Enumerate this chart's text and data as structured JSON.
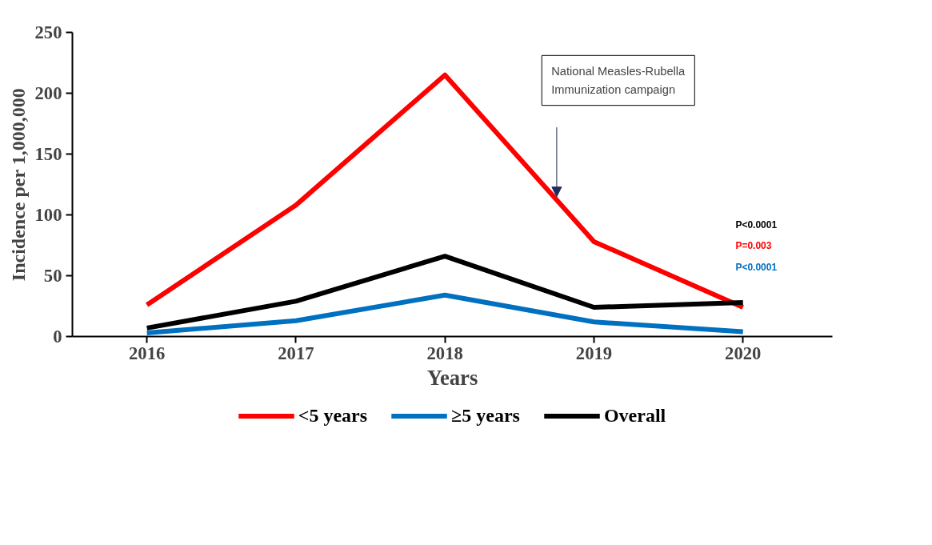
{
  "chart_data": {
    "type": "line",
    "xlabel": "Years",
    "ylabel": "Incidence per 1,000,000",
    "categories": [
      "2016",
      "2017",
      "2018",
      "2019",
      "2020"
    ],
    "series": [
      {
        "name": "<5 years",
        "color": "#ff0000",
        "values": [
          26,
          108,
          215,
          78,
          24
        ]
      },
      {
        "name": "≥5 years",
        "color": "#0070c0",
        "values": [
          3,
          13,
          34,
          12,
          4
        ]
      },
      {
        "name": "Overall",
        "color": "#000000",
        "values": [
          7,
          29,
          66,
          24,
          28
        ]
      }
    ],
    "ylim": [
      0,
      250
    ],
    "yticks": [
      0,
      50,
      100,
      150,
      200,
      250
    ],
    "grid": false,
    "legend": "bottom",
    "marker": "none",
    "line_style": "solid",
    "annotations": [
      "National Measles-Rubella Immunization campaign",
      "P<0.0001",
      "P=0.003",
      "P<0.0001"
    ]
  }
}
